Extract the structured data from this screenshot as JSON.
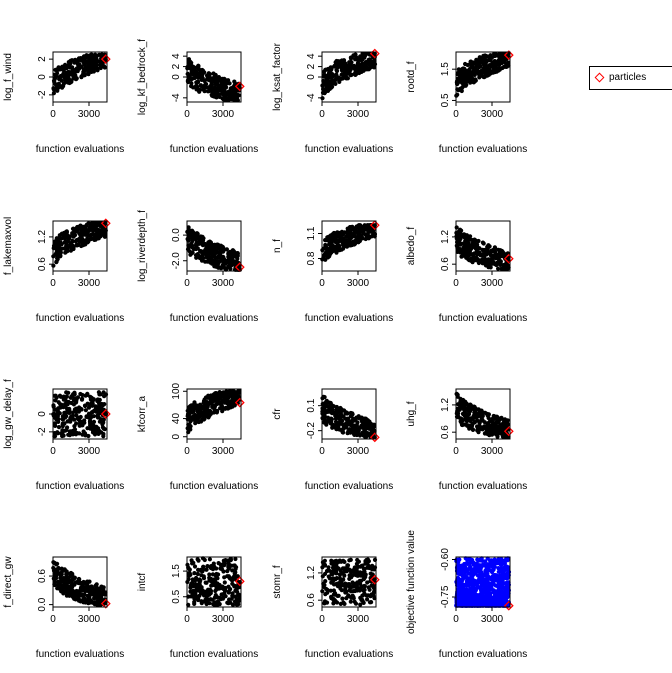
{
  "chart_data": {
    "type": "scatter",
    "legend": {
      "placement": "top-right",
      "label": "particles",
      "color": "#ff0000",
      "marker": "diamond"
    },
    "point_color": "#000000",
    "highlight_color": "#ff0000",
    "objective_color": "#0000ff",
    "panels": [
      {
        "ylabel": "log_f_wind",
        "xlabel": "function evaluations",
        "xticks": [
          "0",
          "3000"
        ],
        "yticks": [
          "-2",
          "0",
          "2"
        ],
        "xlim": [
          0,
          4500
        ],
        "ylim": [
          -2.8,
          2.8
        ],
        "best": 2.0,
        "pattern": "rising",
        "lo": -2.5,
        "hi": 2.5,
        "color": "#000000"
      },
      {
        "ylabel": "log_kf_bedrock_f",
        "xlabel": "function evaluations",
        "xticks": [
          "0",
          "3000"
        ],
        "yticks": [
          "-4",
          "0",
          "2",
          "4"
        ],
        "xlim": [
          0,
          4500
        ],
        "ylim": [
          -4.8,
          4.8
        ],
        "best": -1.8,
        "pattern": "falling",
        "lo": -4.5,
        "hi": 4.5,
        "color": "#000000"
      },
      {
        "ylabel": "log_ksat_factor",
        "xlabel": "function evaluations",
        "xticks": [
          "0",
          "3000"
        ],
        "yticks": [
          "-4",
          "0",
          "2",
          "4"
        ],
        "xlim": [
          0,
          4500
        ],
        "ylim": [
          -4.8,
          4.8
        ],
        "best": 4.5,
        "pattern": "rising",
        "lo": -4.5,
        "hi": 4.5,
        "color": "#000000"
      },
      {
        "ylabel": "rootd_f",
        "xlabel": "function evaluations",
        "xticks": [
          "0",
          "3000"
        ],
        "yticks": [
          "0.5",
          "1.5"
        ],
        "xlim": [
          0,
          4500
        ],
        "ylim": [
          0.45,
          2.05
        ],
        "best": 1.95,
        "pattern": "rising",
        "lo": 0.5,
        "hi": 2.0,
        "color": "#000000"
      },
      {
        "ylabel": "f_lakemaxvol",
        "xlabel": "function evaluations",
        "xticks": [
          "0",
          "3000"
        ],
        "yticks": [
          "0.6",
          "1.2"
        ],
        "xlim": [
          0,
          4500
        ],
        "ylim": [
          0.45,
          1.55
        ],
        "best": 1.5,
        "pattern": "rising",
        "lo": 0.5,
        "hi": 1.5,
        "color": "#000000"
      },
      {
        "ylabel": "log_riverdepth_f",
        "xlabel": "function evaluations",
        "xticks": [
          "0",
          "3000"
        ],
        "yticks": [
          "-2.0",
          "0.0"
        ],
        "xlim": [
          0,
          4500
        ],
        "ylim": [
          -2.8,
          1.1
        ],
        "best": -2.5,
        "pattern": "falling",
        "lo": -2.7,
        "hi": 1.0,
        "color": "#000000"
      },
      {
        "ylabel": "n_f",
        "xlabel": "function evaluations",
        "xticks": [
          "0",
          "3000"
        ],
        "yticks": [
          "0.8",
          "1.1"
        ],
        "xlim": [
          0,
          4500
        ],
        "ylim": [
          0.65,
          1.25
        ],
        "best": 1.2,
        "pattern": "rising",
        "lo": 0.7,
        "hi": 1.2,
        "color": "#000000"
      },
      {
        "ylabel": "albedo_f",
        "xlabel": "function evaluations",
        "xticks": [
          "0",
          "3000"
        ],
        "yticks": [
          "0.6",
          "1.2"
        ],
        "xlim": [
          0,
          4500
        ],
        "ylim": [
          0.45,
          1.55
        ],
        "best": 0.72,
        "pattern": "falling",
        "lo": 0.5,
        "hi": 1.5,
        "color": "#000000"
      },
      {
        "ylabel": "log_gw_delay_f",
        "xlabel": "function evaluations",
        "xticks": [
          "0",
          "3000"
        ],
        "yticks": [
          "-2",
          "0"
        ],
        "xlim": [
          0,
          4500
        ],
        "ylim": [
          -2.8,
          2.8
        ],
        "best": 0.0,
        "pattern": "flat",
        "lo": -2.5,
        "hi": 2.5,
        "color": "#000000"
      },
      {
        "ylabel": "kfcorr_a",
        "xlabel": "function evaluations",
        "xticks": [
          "0",
          "3000"
        ],
        "yticks": [
          "0",
          "40",
          "100"
        ],
        "xlim": [
          0,
          4500
        ],
        "ylim": [
          -5,
          105
        ],
        "best": 75,
        "pattern": "rising",
        "lo": 0,
        "hi": 100,
        "color": "#000000"
      },
      {
        "ylabel": "cfr",
        "xlabel": "function evaluations",
        "xticks": [
          "0",
          "3000"
        ],
        "yticks": [
          "-0.2",
          "0.1"
        ],
        "xlim": [
          0,
          4500
        ],
        "ylim": [
          -0.3,
          0.3
        ],
        "best": -0.28,
        "pattern": "falling",
        "lo": -0.28,
        "hi": 0.25,
        "color": "#000000"
      },
      {
        "ylabel": "uhg_f",
        "xlabel": "function evaluations",
        "xticks": [
          "0",
          "3000"
        ],
        "yticks": [
          "0.6",
          "1.2"
        ],
        "xlim": [
          0,
          4500
        ],
        "ylim": [
          0.45,
          1.55
        ],
        "best": 0.62,
        "pattern": "falling",
        "lo": 0.5,
        "hi": 1.5,
        "color": "#000000"
      },
      {
        "ylabel": "f_direct_gw",
        "xlabel": "function evaluations",
        "xticks": [
          "0",
          "3000"
        ],
        "yticks": [
          "0.0",
          "0.6"
        ],
        "xlim": [
          0,
          4500
        ],
        "ylim": [
          -0.05,
          1.0
        ],
        "best": 0.02,
        "pattern": "falling",
        "lo": 0.0,
        "hi": 1.0,
        "color": "#000000"
      },
      {
        "ylabel": "intcf",
        "xlabel": "function evaluations",
        "xticks": [
          "0",
          "3000"
        ],
        "yticks": [
          "0.5",
          "1.5"
        ],
        "xlim": [
          0,
          4500
        ],
        "ylim": [
          0.1,
          2.05
        ],
        "best": 1.1,
        "pattern": "flat",
        "lo": 0.15,
        "hi": 2.0,
        "color": "#000000"
      },
      {
        "ylabel": "stomr_f",
        "xlabel": "function evaluations",
        "xticks": [
          "0",
          "3000"
        ],
        "yticks": [
          "0.6",
          "1.2"
        ],
        "xlim": [
          0,
          4500
        ],
        "ylim": [
          0.45,
          1.55
        ],
        "best": 1.05,
        "pattern": "flat",
        "lo": 0.5,
        "hi": 1.5,
        "color": "#000000"
      },
      {
        "ylabel": "objective function value",
        "xlabel": "function evaluations",
        "xticks": [
          "0",
          "3000"
        ],
        "yticks": [
          "-0.75",
          "-0.60"
        ],
        "xlim": [
          0,
          4500
        ],
        "ylim": [
          -0.79,
          -0.59
        ],
        "best": -0.785,
        "pattern": "objective",
        "lo": -0.785,
        "hi": -0.595,
        "color": "#0000ff"
      }
    ]
  }
}
